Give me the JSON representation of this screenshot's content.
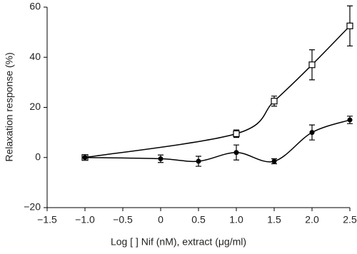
{
  "chart_data": {
    "type": "scatter",
    "xlabel": "Log [ ] Nif (nM), extract (μg/ml)",
    "ylabel": "Relaxation response (%)",
    "xlim": [
      -1.5,
      2.5
    ],
    "ylim": [
      -20,
      60
    ],
    "xticks": [
      {
        "value": -1.5,
        "label": "−1.5"
      },
      {
        "value": -1.0,
        "label": "−1.0"
      },
      {
        "value": -0.5,
        "label": "−0.5"
      },
      0,
      {
        "value": 0.5,
        "label": "0.5"
      },
      {
        "value": 1.0,
        "label": "1.0"
      },
      {
        "value": 1.5,
        "label": "1.5"
      },
      {
        "value": 2.0,
        "label": "2.0"
      },
      {
        "value": 2.5,
        "label": "2.5"
      }
    ],
    "yticks": [
      {
        "value": -20,
        "label": "−20"
      },
      0,
      20,
      40,
      60
    ],
    "series": [
      {
        "marker": "open-square",
        "color": "#000000",
        "x": [
          -1,
          1,
          1.5,
          2,
          2.5
        ],
        "values": [
          0,
          9.5,
          22.5,
          37,
          52.5
        ],
        "errors": [
          0,
          1.5,
          2,
          6,
          8
        ]
      },
      {
        "marker": "filled-circle",
        "color": "#000000",
        "x": [
          -1,
          0,
          0.5,
          1,
          1.5,
          2,
          2.5
        ],
        "values": [
          0,
          -0.5,
          -1.5,
          2,
          -1.5,
          10,
          15
        ],
        "errors": [
          0,
          1.5,
          2,
          3,
          1,
          3,
          1.5
        ]
      }
    ]
  }
}
